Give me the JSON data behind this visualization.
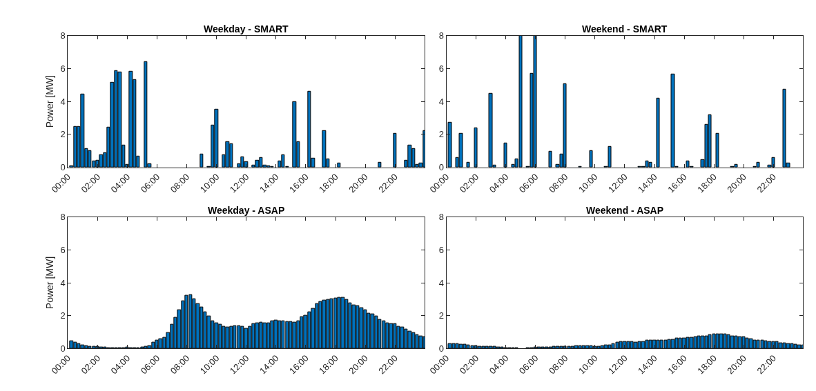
{
  "chart_data": [
    {
      "type": "bar",
      "title": "Weekday - SMART",
      "ylabel": "Power [MW]",
      "color": "#0072bd",
      "xlim": [
        0,
        24
      ],
      "ylim": [
        0,
        8
      ],
      "yticks": [
        0,
        2,
        4,
        6,
        8
      ],
      "xticks": [
        {
          "value": 0,
          "label": "00:00"
        },
        {
          "value": 2,
          "label": "02:00"
        },
        {
          "value": 4,
          "label": "04:00"
        },
        {
          "value": 6,
          "label": "06:00"
        },
        {
          "value": 8,
          "label": "08:00"
        },
        {
          "value": 10,
          "label": "10:00"
        },
        {
          "value": 12,
          "label": "12:00"
        },
        {
          "value": 14,
          "label": "14:00"
        },
        {
          "value": 16,
          "label": "16:00"
        },
        {
          "value": 18,
          "label": "18:00"
        },
        {
          "value": 20,
          "label": "20:00"
        },
        {
          "value": 22,
          "label": "22:00"
        }
      ],
      "x": [
        0.25,
        0.5,
        0.75,
        1,
        1.25,
        1.5,
        1.75,
        2,
        2.25,
        2.5,
        2.75,
        3,
        3.25,
        3.5,
        3.75,
        4,
        4.25,
        4.5,
        4.75,
        5,
        5.25,
        5.5,
        5.75,
        6,
        6.25,
        6.5,
        6.75,
        7,
        7.25,
        7.5,
        7.75,
        8,
        8.25,
        8.5,
        8.75,
        9,
        9.25,
        9.5,
        9.75,
        10,
        10.25,
        10.5,
        10.75,
        11,
        11.25,
        11.5,
        11.75,
        12,
        12.25,
        12.5,
        12.75,
        13,
        13.25,
        13.5,
        13.75,
        14,
        14.25,
        14.5,
        14.75,
        15,
        15.25,
        15.5,
        15.75,
        16,
        16.25,
        16.5,
        16.75,
        17,
        17.25,
        17.5,
        17.75,
        18,
        18.25,
        18.5,
        18.75,
        19,
        19.25,
        19.5,
        19.75,
        20,
        20.25,
        20.5,
        20.75,
        21,
        21.25,
        21.5,
        21.75,
        22,
        22.25,
        22.5,
        22.75,
        23,
        23.25,
        23.5,
        23.75,
        24
      ],
      "values": [
        0.07,
        2.46,
        2.46,
        4.42,
        1.12,
        1.0,
        0.38,
        0.42,
        0.73,
        0.87,
        2.42,
        5.14,
        5.85,
        5.77,
        1.33,
        0.16,
        5.81,
        5.33,
        0.67,
        0,
        6.42,
        0.2,
        0,
        0,
        0,
        0,
        0,
        0,
        0,
        0,
        0,
        null,
        0,
        0,
        0,
        0.8,
        0,
        0.03,
        2.57,
        3.52,
        0,
        0.73,
        1.56,
        1.4,
        0,
        0.2,
        0.61,
        0.31,
        0,
        0.12,
        0.41,
        0.58,
        0.12,
        0.07,
        0.03,
        0,
        0.38,
        0.76,
        0.03,
        0,
        3.97,
        1.55,
        0,
        0,
        4.61,
        0.54,
        0,
        0,
        2.22,
        0.48,
        0,
        0,
        0.23,
        0,
        0,
        0,
        0,
        0,
        0,
        null,
        0,
        0,
        0,
        0.3,
        0,
        0,
        0,
        2.03,
        0,
        0,
        0.41,
        1.32,
        1.13,
        0.16,
        0.23,
        2.22
      ]
    },
    {
      "type": "bar",
      "title": "Weekend - SMART",
      "color": "#0072bd",
      "xlim": [
        0,
        24
      ],
      "ylim": [
        0,
        8
      ],
      "yticks": [
        0,
        2,
        4,
        6,
        8
      ],
      "xticks": [
        {
          "value": 0,
          "label": "00:00"
        },
        {
          "value": 2,
          "label": "02:00"
        },
        {
          "value": 4,
          "label": "04:00"
        },
        {
          "value": 6,
          "label": "06:00"
        },
        {
          "value": 8,
          "label": "08:00"
        },
        {
          "value": 10,
          "label": "10:00"
        },
        {
          "value": 12,
          "label": "12:00"
        },
        {
          "value": 14,
          "label": "14:00"
        },
        {
          "value": 16,
          "label": "16:00"
        },
        {
          "value": 18,
          "label": "18:00"
        },
        {
          "value": 20,
          "label": "20:00"
        },
        {
          "value": 22,
          "label": "22:00"
        }
      ],
      "x": [
        0.25,
        0.5,
        0.75,
        1,
        1.25,
        1.5,
        1.75,
        2,
        2.25,
        2.5,
        2.75,
        3,
        3.25,
        3.5,
        3.75,
        4,
        4.25,
        4.5,
        4.75,
        5,
        5.25,
        5.5,
        5.75,
        6,
        6.25,
        6.5,
        6.75,
        7,
        7.25,
        7.5,
        7.75,
        8,
        8.25,
        8.5,
        8.75,
        9,
        9.25,
        9.5,
        9.75,
        10,
        10.25,
        10.5,
        10.75,
        11,
        11.25,
        11.5,
        11.75,
        12,
        12.25,
        12.5,
        12.75,
        13,
        13.25,
        13.5,
        13.75,
        14,
        14.25,
        14.5,
        14.75,
        15,
        15.25,
        15.5,
        15.75,
        16,
        16.25,
        16.5,
        16.75,
        17,
        17.25,
        17.5,
        17.75,
        18,
        18.25,
        18.5,
        18.75,
        19,
        19.25,
        19.5,
        19.75,
        20,
        20.25,
        20.5,
        20.75,
        21,
        21.25,
        21.5,
        21.75,
        22,
        22.25,
        22.5,
        22.75,
        23,
        23.25,
        23.5,
        23.75,
        24
      ],
      "values": [
        2.73,
        0,
        0.6,
        2.04,
        0,
        0.3,
        0,
        2.38,
        0,
        0,
        0,
        4.46,
        0.1,
        0,
        0,
        1.48,
        0,
        0.14,
        0.48,
        8,
        0,
        0.05,
        5.7,
        8,
        0,
        0,
        0,
        0.94,
        0,
        0.18,
        0.78,
        5.06,
        0,
        0,
        0,
        0.05,
        0,
        0,
        1.0,
        null,
        0,
        0,
        0.03,
        1.25,
        0,
        0,
        0,
        0,
        0,
        0,
        0,
        0.05,
        0.05,
        0.38,
        0.27,
        null,
        4.19,
        0,
        0,
        0,
        5.65,
        0.03,
        0,
        0,
        0.35,
        0.03,
        0,
        0,
        0.45,
        2.61,
        3.17,
        0,
        2.04,
        0,
        0,
        0,
        0.03,
        0.18,
        0,
        0,
        0,
        0,
        0.03,
        0.27,
        0,
        0,
        0.1,
        0.56,
        0,
        0,
        4.72,
        0.23,
        0,
        0,
        0,
        0
      ]
    },
    {
      "type": "bar",
      "title": "Weekday - ASAP",
      "ylabel": "Power [MW]",
      "color": "#0072bd",
      "xlim": [
        0,
        24
      ],
      "ylim": [
        0,
        8
      ],
      "yticks": [
        0,
        2,
        4,
        6,
        8
      ],
      "xticks": [
        {
          "value": 0,
          "label": "00:00"
        },
        {
          "value": 2,
          "label": "02:00"
        },
        {
          "value": 4,
          "label": "04:00"
        },
        {
          "value": 6,
          "label": "06:00"
        },
        {
          "value": 8,
          "label": "08:00"
        },
        {
          "value": 10,
          "label": "10:00"
        },
        {
          "value": 12,
          "label": "12:00"
        },
        {
          "value": 14,
          "label": "14:00"
        },
        {
          "value": 16,
          "label": "16:00"
        },
        {
          "value": 18,
          "label": "18:00"
        },
        {
          "value": 20,
          "label": "20:00"
        },
        {
          "value": 22,
          "label": "22:00"
        }
      ],
      "x": [
        0.25,
        0.5,
        0.75,
        1,
        1.25,
        1.5,
        1.75,
        2,
        2.25,
        2.5,
        2.75,
        3,
        3.25,
        3.5,
        3.75,
        4,
        4.25,
        4.5,
        4.75,
        5,
        5.25,
        5.5,
        5.75,
        6,
        6.25,
        6.5,
        6.75,
        7,
        7.25,
        7.5,
        7.75,
        8,
        8.25,
        8.5,
        8.75,
        9,
        9.25,
        9.5,
        9.75,
        10,
        10.25,
        10.5,
        10.75,
        11,
        11.25,
        11.5,
        11.75,
        12,
        12.25,
        12.5,
        12.75,
        13,
        13.25,
        13.5,
        13.75,
        14,
        14.25,
        14.5,
        14.75,
        15,
        15.25,
        15.5,
        15.75,
        16,
        16.25,
        16.5,
        16.75,
        17,
        17.25,
        17.5,
        17.75,
        18,
        18.25,
        18.5,
        18.75,
        19,
        19.25,
        19.5,
        19.75,
        20,
        20.25,
        20.5,
        20.75,
        21,
        21.25,
        21.5,
        21.75,
        22,
        22.25,
        22.5,
        22.75,
        23,
        23.25,
        23.5,
        23.75,
        24
      ],
      "values": [
        0.45,
        0.35,
        0.27,
        0.2,
        0.15,
        0.13,
        0.11,
        0.1,
        0.06,
        0.06,
        0.03,
        0.03,
        0.03,
        0.03,
        0.03,
        0.07,
        0.03,
        0.03,
        0.03,
        0.07,
        0.11,
        0.17,
        0.35,
        0.49,
        0.56,
        0.66,
        0.97,
        1.46,
        1.86,
        2.35,
        2.89,
        3.21,
        3.27,
        3.01,
        2.73,
        2.49,
        2.21,
        1.96,
        1.69,
        1.54,
        1.44,
        1.34,
        1.3,
        1.34,
        1.38,
        1.37,
        1.32,
        1.21,
        1.34,
        1.51,
        1.54,
        1.58,
        1.54,
        1.54,
        1.66,
        1.72,
        1.66,
        1.65,
        1.62,
        1.62,
        1.58,
        1.69,
        1.93,
        2.0,
        2.21,
        2.44,
        2.7,
        2.85,
        2.92,
        2.99,
        3.01,
        3.06,
        3.08,
        3.08,
        2.96,
        2.77,
        2.65,
        2.61,
        2.46,
        2.32,
        2.15,
        2.07,
        1.96,
        1.76,
        1.66,
        1.55,
        1.52,
        1.52,
        1.34,
        1.31,
        1.18,
        1.04,
        0.94,
        0.85,
        0.76,
        0.7
      ]
    },
    {
      "type": "bar",
      "title": "Weekend - ASAP",
      "color": "#0072bd",
      "xlim": [
        0,
        24
      ],
      "ylim": [
        0,
        8
      ],
      "yticks": [
        0,
        2,
        4,
        6,
        8
      ],
      "xticks": [
        {
          "value": 0,
          "label": "00:00"
        },
        {
          "value": 2,
          "label": "02:00"
        },
        {
          "value": 4,
          "label": "04:00"
        },
        {
          "value": 6,
          "label": "06:00"
        },
        {
          "value": 8,
          "label": "08:00"
        },
        {
          "value": 10,
          "label": "10:00"
        },
        {
          "value": 12,
          "label": "12:00"
        },
        {
          "value": 14,
          "label": "14:00"
        },
        {
          "value": 16,
          "label": "16:00"
        },
        {
          "value": 18,
          "label": "18:00"
        },
        {
          "value": 20,
          "label": "20:00"
        },
        {
          "value": 22,
          "label": "22:00"
        }
      ],
      "x": [
        0.25,
        0.5,
        0.75,
        1,
        1.25,
        1.5,
        1.75,
        2,
        2.25,
        2.5,
        2.75,
        3,
        3.25,
        3.5,
        3.75,
        4,
        4.25,
        4.5,
        4.75,
        5,
        5.25,
        5.5,
        5.75,
        6,
        6.25,
        6.5,
        6.75,
        7,
        7.25,
        7.5,
        7.75,
        8,
        8.25,
        8.5,
        8.75,
        9,
        9.25,
        9.5,
        9.75,
        10,
        10.25,
        10.5,
        10.75,
        11,
        11.25,
        11.5,
        11.75,
        12,
        12.25,
        12.5,
        12.75,
        13,
        13.25,
        13.5,
        13.75,
        14,
        14.25,
        14.5,
        14.75,
        15,
        15.25,
        15.5,
        15.75,
        16,
        16.25,
        16.5,
        16.75,
        17,
        17.25,
        17.5,
        17.75,
        18,
        18.25,
        18.5,
        18.75,
        19,
        19.25,
        19.5,
        19.75,
        20,
        20.25,
        20.5,
        20.75,
        21,
        21.25,
        21.5,
        21.75,
        22,
        22.25,
        22.5,
        22.75,
        23,
        23.25,
        23.5,
        23.75,
        24
      ],
      "values": [
        0.3,
        0.3,
        0.29,
        0.25,
        0.25,
        0.19,
        0.17,
        0.15,
        0.11,
        0.1,
        0.1,
        0.1,
        0.1,
        0.07,
        0.07,
        0.03,
        0.03,
        0.03,
        0.03,
        0,
        0,
        0.03,
        0.03,
        0.07,
        0.07,
        0.07,
        0.07,
        0.07,
        0.11,
        0.11,
        0.11,
        0.11,
        0.11,
        0.11,
        0.15,
        0.15,
        0.15,
        0.15,
        0.15,
        0.12,
        0.12,
        0.18,
        0.21,
        0.21,
        0.3,
        0.35,
        0.4,
        0.41,
        0.41,
        0.41,
        0.39,
        0.41,
        0.41,
        0.48,
        0.48,
        0.48,
        0.48,
        0.48,
        0.48,
        0.52,
        0.52,
        0.61,
        0.61,
        0.61,
        0.65,
        0.68,
        0.7,
        0.75,
        0.76,
        0.76,
        0.84,
        0.87,
        0.88,
        0.88,
        0.86,
        0.81,
        0.76,
        0.73,
        0.7,
        0.69,
        0.64,
        0.59,
        0.51,
        0.48,
        0.48,
        0.46,
        0.41,
        0.4,
        0.4,
        0.33,
        0.33,
        0.3,
        0.3,
        0.25,
        0.22,
        0.22
      ]
    }
  ]
}
